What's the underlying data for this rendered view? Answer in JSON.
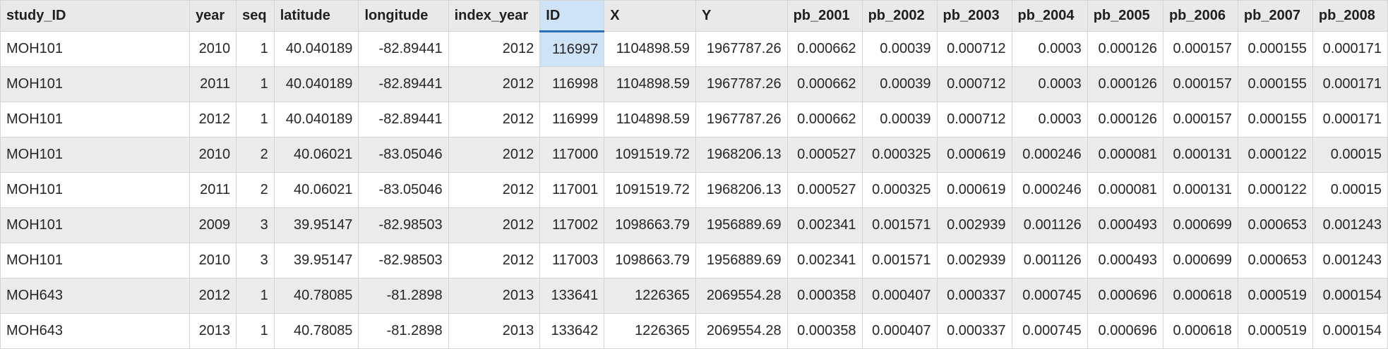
{
  "table": {
    "columns": [
      "study_ID",
      "year",
      "seq",
      "latitude",
      "longitude",
      "index_year",
      "ID",
      "X",
      "Y",
      "pb_2001",
      "pb_2002",
      "pb_2003",
      "pb_2004",
      "pb_2005",
      "pb_2006",
      "pb_2007",
      "pb_2008"
    ],
    "selected_cell": {
      "row": 0,
      "column": "ID"
    },
    "rows": [
      [
        "MOH101",
        "2010",
        "1",
        "40.040189",
        "-82.89441",
        "2012",
        "116997",
        "1104898.59",
        "1967787.26",
        "0.000662",
        "0.00039",
        "0.000712",
        "0.0003",
        "0.000126",
        "0.000157",
        "0.000155",
        "0.000171"
      ],
      [
        "MOH101",
        "2011",
        "1",
        "40.040189",
        "-82.89441",
        "2012",
        "116998",
        "1104898.59",
        "1967787.26",
        "0.000662",
        "0.00039",
        "0.000712",
        "0.0003",
        "0.000126",
        "0.000157",
        "0.000155",
        "0.000171"
      ],
      [
        "MOH101",
        "2012",
        "1",
        "40.040189",
        "-82.89441",
        "2012",
        "116999",
        "1104898.59",
        "1967787.26",
        "0.000662",
        "0.00039",
        "0.000712",
        "0.0003",
        "0.000126",
        "0.000157",
        "0.000155",
        "0.000171"
      ],
      [
        "MOH101",
        "2010",
        "2",
        "40.06021",
        "-83.05046",
        "2012",
        "117000",
        "1091519.72",
        "1968206.13",
        "0.000527",
        "0.000325",
        "0.000619",
        "0.000246",
        "0.000081",
        "0.000131",
        "0.000122",
        "0.00015"
      ],
      [
        "MOH101",
        "2011",
        "2",
        "40.06021",
        "-83.05046",
        "2012",
        "117001",
        "1091519.72",
        "1968206.13",
        "0.000527",
        "0.000325",
        "0.000619",
        "0.000246",
        "0.000081",
        "0.000131",
        "0.000122",
        "0.00015"
      ],
      [
        "MOH101",
        "2009",
        "3",
        "39.95147",
        "-82.98503",
        "2012",
        "117002",
        "1098663.79",
        "1956889.69",
        "0.002341",
        "0.001571",
        "0.002939",
        "0.001126",
        "0.000493",
        "0.000699",
        "0.000653",
        "0.001243"
      ],
      [
        "MOH101",
        "2010",
        "3",
        "39.95147",
        "-82.98503",
        "2012",
        "117003",
        "1098663.79",
        "1956889.69",
        "0.002341",
        "0.001571",
        "0.002939",
        "0.001126",
        "0.000493",
        "0.000699",
        "0.000653",
        "0.001243"
      ],
      [
        "MOH643",
        "2012",
        "1",
        "40.78085",
        "-81.2898",
        "2013",
        "133641",
        "1226365",
        "2069554.28",
        "0.000358",
        "0.000407",
        "0.000337",
        "0.000745",
        "0.000696",
        "0.000618",
        "0.000519",
        "0.000154"
      ],
      [
        "MOH643",
        "2013",
        "1",
        "40.78085",
        "-81.2898",
        "2013",
        "133642",
        "1226365",
        "2069554.28",
        "0.000358",
        "0.000407",
        "0.000337",
        "0.000745",
        "0.000696",
        "0.000618",
        "0.000519",
        "0.000154"
      ]
    ]
  }
}
